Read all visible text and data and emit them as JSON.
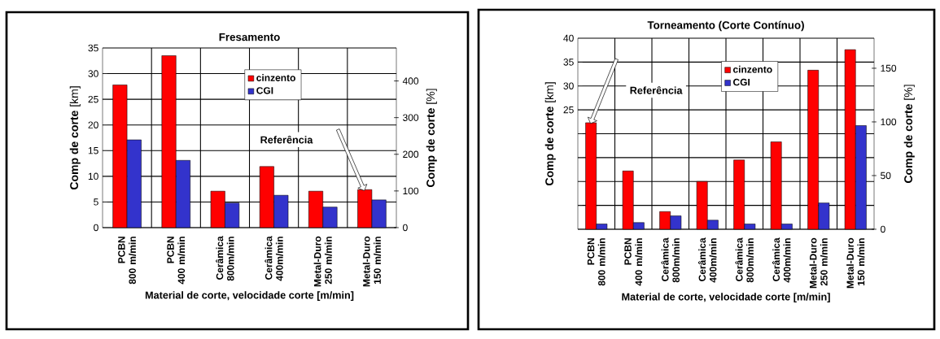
{
  "chart_data": [
    {
      "type": "bar",
      "title": "Fresamento",
      "xlabel": "Material de corte, velocidade corte [m/min]",
      "ylabel": "**Comp de corte** [km]",
      "y2label": "**Comp de corte** [%]",
      "categories": [
        "PCBN\n800 m/min",
        "PCBN\n400 m/min",
        "Cerâmica\n800m/min",
        "Cerâmica\n400m/min",
        "Metal-Duro\n250 m/min",
        "Metal-Duro\n150 m/min"
      ],
      "series": [
        {
          "name": "cinzento",
          "color": "#ff0000",
          "values": [
            27.8,
            33.5,
            7.1,
            11.9,
            7.1,
            7.4
          ]
        },
        {
          "name": "CGI",
          "color": "#3333cc",
          "values": [
            17.1,
            13.1,
            4.8,
            6.3,
            4.0,
            5.4
          ]
        }
      ],
      "ylim": [
        0,
        35
      ],
      "yticks": [
        0,
        5,
        10,
        15,
        20,
        25,
        30,
        35
      ],
      "y2lim": [
        0,
        490
      ],
      "y2ticks": [
        0,
        100,
        200,
        300,
        400
      ],
      "grid": true,
      "legend": "top",
      "annotations": [
        "Referência"
      ]
    },
    {
      "type": "bar",
      "title": "Torneamento  (Corte Contínuo)",
      "xlabel": "Material de corte, velocidade corte [m/min]",
      "ylabel": "**Comp de corte** [km]",
      "y2label": "**Comp de corte** [%]",
      "categories": [
        "PCBN\n800 m/min",
        "PCBN\n400 m/min",
        "Cerâmica\n800m/min",
        "Cerâmica\n400m/min",
        "Cerâmica\n800m/min",
        "Cerâmica\n400m/min",
        "Metal-Duro\n250 m/min",
        "Metal-Duro\n150 m/min"
      ],
      "series": [
        {
          "name": "cinzento",
          "color": "#ff0000",
          "values": [
            22.3,
            12.2,
            3.7,
            10.0,
            14.5,
            18.3,
            33.3,
            37.6
          ]
        },
        {
          "name": "CGI",
          "color": "#3333cc",
          "values": [
            1.1,
            1.4,
            2.8,
            1.9,
            1.1,
            1.1,
            5.5,
            21.7
          ]
        }
      ],
      "ylim": [
        0,
        40
      ],
      "yticks": [
        {
          "value": 0,
          "label": null
        },
        {
          "value": 5,
          "label": null
        },
        {
          "value": 10,
          "label": null
        },
        {
          "value": 15,
          "label": null
        },
        {
          "value": 20,
          "label": null
        },
        25,
        30,
        35,
        40
      ],
      "y2lim": [
        0,
        178
      ],
      "y2ticks": [
        0,
        50,
        100,
        150
      ],
      "grid": true,
      "legend": "top",
      "annotations": [
        "Referência"
      ]
    }
  ]
}
